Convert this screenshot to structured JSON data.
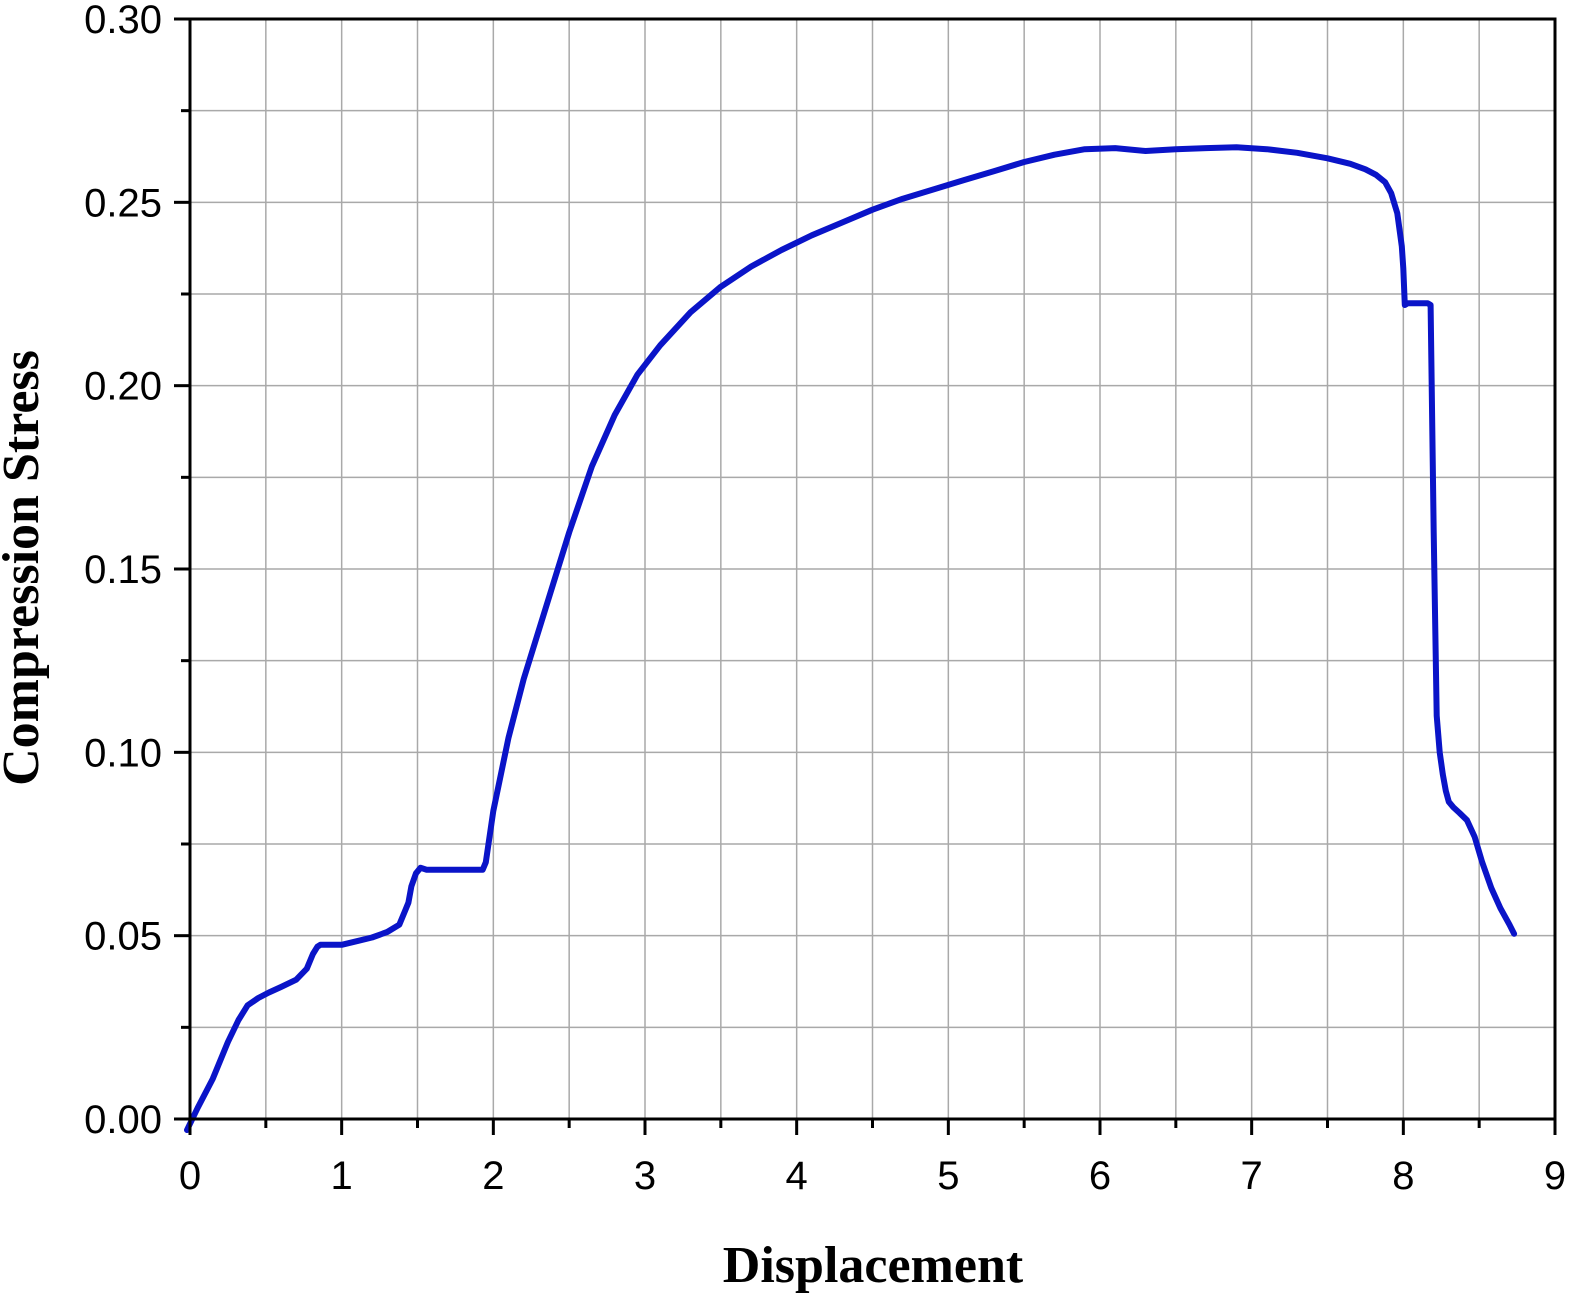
{
  "colors": {
    "series": "#0a14c8",
    "grid": "#a9a9a9",
    "axis": "#000000",
    "background": "#ffffff"
  },
  "chart_data": {
    "type": "line",
    "title": "",
    "xlabel": "Displacement",
    "ylabel": "Compression Stress",
    "xlim": [
      0,
      9
    ],
    "ylim": [
      0,
      0.3
    ],
    "grid": true,
    "x_ticks": [
      0,
      1,
      2,
      3,
      4,
      5,
      6,
      7,
      8,
      9
    ],
    "x_tick_labels": [
      "0",
      "1",
      "2",
      "3",
      "4",
      "5",
      "6",
      "7",
      "8",
      "9"
    ],
    "y_ticks": [
      0,
      0.05,
      0.1,
      0.15,
      0.2,
      0.25,
      0.3
    ],
    "y_tick_labels": [
      "0.00",
      "0.05",
      "0.10",
      "0.15",
      "0.20",
      "0.25",
      "0.30"
    ],
    "x_minor_step": 0.5,
    "y_minor_step": 0.025,
    "series": [
      {
        "x": [
          -0.02,
          0.05,
          0.15,
          0.25,
          0.32,
          0.38,
          0.45,
          0.52,
          0.6,
          0.7,
          0.77,
          0.81,
          0.84,
          0.86,
          0.9,
          1.0,
          1.1,
          1.2,
          1.3,
          1.38,
          1.42,
          1.44,
          1.46,
          1.49,
          1.52,
          1.56,
          1.65,
          1.8,
          1.93,
          1.95,
          2.0,
          2.1,
          2.2,
          2.35,
          2.5,
          2.65,
          2.8,
          2.95,
          3.1,
          3.3,
          3.5,
          3.7,
          3.9,
          4.1,
          4.3,
          4.5,
          4.7,
          4.9,
          5.1,
          5.3,
          5.5,
          5.7,
          5.9,
          6.1,
          6.3,
          6.5,
          6.7,
          6.9,
          7.1,
          7.3,
          7.5,
          7.65,
          7.75,
          7.82,
          7.88,
          7.92,
          7.96,
          7.99,
          8.0,
          8.01,
          8.03,
          8.1,
          8.16,
          8.18,
          8.2,
          8.22,
          8.24,
          8.26,
          8.28,
          8.3,
          8.33,
          8.37,
          8.42,
          8.47,
          8.52,
          8.58,
          8.64,
          8.7,
          8.73
        ],
        "y": [
          -0.003,
          0.003,
          0.011,
          0.021,
          0.027,
          0.031,
          0.033,
          0.0345,
          0.036,
          0.038,
          0.041,
          0.045,
          0.047,
          0.0475,
          0.0475,
          0.0475,
          0.0485,
          0.0495,
          0.051,
          0.053,
          0.057,
          0.059,
          0.0635,
          0.067,
          0.0685,
          0.068,
          0.068,
          0.068,
          0.068,
          0.07,
          0.084,
          0.104,
          0.12,
          0.14,
          0.16,
          0.178,
          0.192,
          0.203,
          0.211,
          0.22,
          0.227,
          0.2325,
          0.237,
          0.241,
          0.2445,
          0.248,
          0.251,
          0.2535,
          0.256,
          0.2585,
          0.261,
          0.263,
          0.2645,
          0.2648,
          0.264,
          0.2645,
          0.2648,
          0.265,
          0.2645,
          0.2635,
          0.262,
          0.2605,
          0.259,
          0.2575,
          0.2555,
          0.2525,
          0.247,
          0.238,
          0.232,
          0.222,
          0.2225,
          0.2225,
          0.2225,
          0.222,
          0.16,
          0.11,
          0.1,
          0.094,
          0.0895,
          0.0865,
          0.085,
          0.0835,
          0.0815,
          0.077,
          0.07,
          0.063,
          0.0575,
          0.053,
          0.0505
        ]
      }
    ]
  }
}
